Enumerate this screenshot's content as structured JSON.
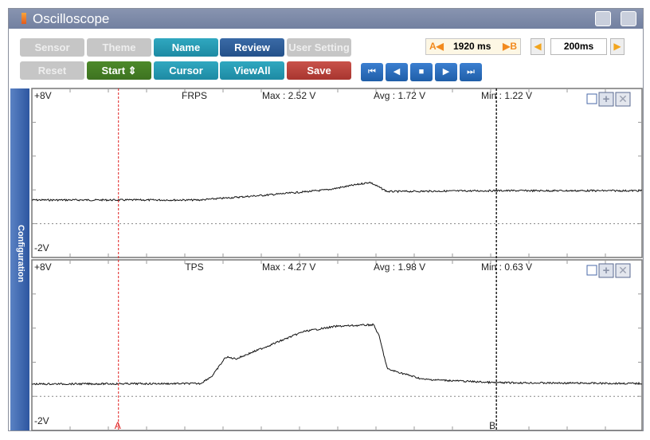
{
  "window": {
    "title": "Oscilloscope"
  },
  "toolbar": {
    "row1": [
      {
        "label": "Sensor",
        "style": "gray"
      },
      {
        "label": "Theme",
        "style": "gray"
      },
      {
        "label": "Name",
        "style": "teal"
      },
      {
        "label": "Review",
        "style": "navy"
      },
      {
        "label": "User Setting",
        "style": "gray"
      }
    ],
    "row2": [
      {
        "label": "Reset",
        "style": "gray"
      },
      {
        "label": "Start ⇕",
        "style": "green"
      },
      {
        "label": "Cursor",
        "style": "teal"
      },
      {
        "label": "ViewAll",
        "style": "teal"
      },
      {
        "label": "Save",
        "style": "red"
      }
    ],
    "ab_label_a": "A◀",
    "ab_value": "1920 ms",
    "ab_label_b": "▶B",
    "timebase": "200ms",
    "playback": [
      "⏮",
      "◀",
      "■",
      "▶",
      "⏭"
    ]
  },
  "sidebar": {
    "label": "Configuration"
  },
  "colors": {
    "cursor_a": "#e02020",
    "cursor_b": "#000000",
    "trace": "#111111"
  },
  "chart_data": [
    {
      "type": "line",
      "name": "FRPS",
      "ymax_label": "+8V",
      "ymin_label": "-2V",
      "ylim": [
        -2,
        8
      ],
      "xlim_ms": [
        0,
        3100
      ],
      "max": "Max : 2.52 V",
      "avg": "Avg : 1.72 V",
      "min": "Min : 1.22 V",
      "points": [
        [
          0,
          1.4
        ],
        [
          850,
          1.4
        ],
        [
          1200,
          1.7
        ],
        [
          1500,
          2.0
        ],
        [
          1717,
          2.45
        ],
        [
          1806,
          1.9
        ],
        [
          2350,
          1.95
        ],
        [
          3100,
          1.95
        ]
      ]
    },
    {
      "type": "line",
      "name": "TPS",
      "ymax_label": "+8V",
      "ymin_label": "-2V",
      "ylim": [
        -2,
        8
      ],
      "xlim_ms": [
        0,
        3100
      ],
      "max": "Max : 4.27 V",
      "avg": "Avg : 1.98 V",
      "min": "Min : 0.63 V",
      "points": [
        [
          0,
          0.72
        ],
        [
          856,
          0.75
        ],
        [
          917,
          1.2
        ],
        [
          985,
          2.3
        ],
        [
          1038,
          2.2
        ],
        [
          1381,
          3.8
        ],
        [
          1543,
          4.1
        ],
        [
          1737,
          4.2
        ],
        [
          1765,
          3.5
        ],
        [
          1806,
          1.6
        ],
        [
          1987,
          1.0
        ],
        [
          2351,
          0.8
        ],
        [
          3100,
          0.75
        ]
      ]
    }
  ],
  "cursors": {
    "a_label": "A",
    "a_ms": 440,
    "b_label": "B",
    "b_ms": 2360
  }
}
